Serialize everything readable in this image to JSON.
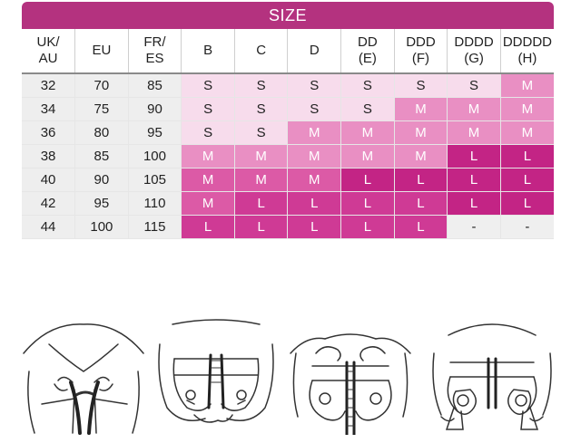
{
  "title": "SIZE",
  "headers": [
    [
      "UK/",
      "AU"
    ],
    [
      "EU",
      ""
    ],
    [
      "FR/",
      "ES"
    ],
    [
      "B",
      ""
    ],
    [
      "C",
      ""
    ],
    [
      "D",
      ""
    ],
    [
      "DD",
      "(E)"
    ],
    [
      "DDD",
      "(F)"
    ],
    [
      "DDDD",
      "(G)"
    ],
    [
      "DDDDD",
      "(H)"
    ]
  ],
  "rows": [
    [
      "32",
      "70",
      "85",
      "S",
      "S",
      "S",
      "S",
      "S",
      "S",
      "M"
    ],
    [
      "34",
      "75",
      "90",
      "S",
      "S",
      "S",
      "S",
      "M",
      "M",
      "M"
    ],
    [
      "36",
      "80",
      "95",
      "S",
      "S",
      "M",
      "M",
      "M",
      "M",
      "M"
    ],
    [
      "38",
      "85",
      "100",
      "M",
      "M",
      "M",
      "M",
      "M",
      "L",
      "L"
    ],
    [
      "40",
      "90",
      "105",
      "M",
      "M",
      "M",
      "L",
      "L",
      "L",
      "L"
    ],
    [
      "42",
      "95",
      "110",
      "M",
      "L",
      "L",
      "L",
      "L",
      "L",
      "L"
    ],
    [
      "44",
      "100",
      "115",
      "L",
      "L",
      "L",
      "L",
      "L",
      "-",
      "-"
    ]
  ],
  "shades": [
    [
      "num",
      "num",
      "num",
      "lv0",
      "lv0",
      "lv0",
      "lv0",
      "lv0",
      "lv0",
      "lv1"
    ],
    [
      "num",
      "num",
      "num",
      "lv0",
      "lv0",
      "lv0",
      "lv0",
      "lv1",
      "lv1",
      "lv1"
    ],
    [
      "num",
      "num",
      "num",
      "lv0",
      "lv0",
      "lv1",
      "lv1",
      "lv1",
      "lv1",
      "lv1"
    ],
    [
      "num",
      "num",
      "num",
      "lv1",
      "lv1",
      "lv1",
      "lv1",
      "lv1",
      "lv4",
      "lv4"
    ],
    [
      "num",
      "num",
      "num",
      "lv2",
      "lv2",
      "lv2",
      "lv4",
      "lv4",
      "lv4",
      "lv4"
    ],
    [
      "num",
      "num",
      "num",
      "lv2",
      "lv3",
      "lv3",
      "lv3",
      "lv3",
      "lv4",
      "lv4"
    ],
    [
      "num",
      "num",
      "num",
      "lv3",
      "lv3",
      "lv3",
      "lv3",
      "lv3",
      "none",
      "none"
    ]
  ],
  "colors": {
    "title_bar": "#b4327f",
    "light_pink": "#f7dcec",
    "medium_pink": "#e98fc3",
    "magenta": "#cf3a95",
    "gray_cell": "#eeeeee"
  },
  "illustrations": [
    {
      "icon": "bra-step-1-fasten-icon"
    },
    {
      "icon": "bra-step-2-zip-icon"
    },
    {
      "icon": "bra-step-3-adjust-icon"
    },
    {
      "icon": "bra-step-4-pump-icon"
    }
  ]
}
